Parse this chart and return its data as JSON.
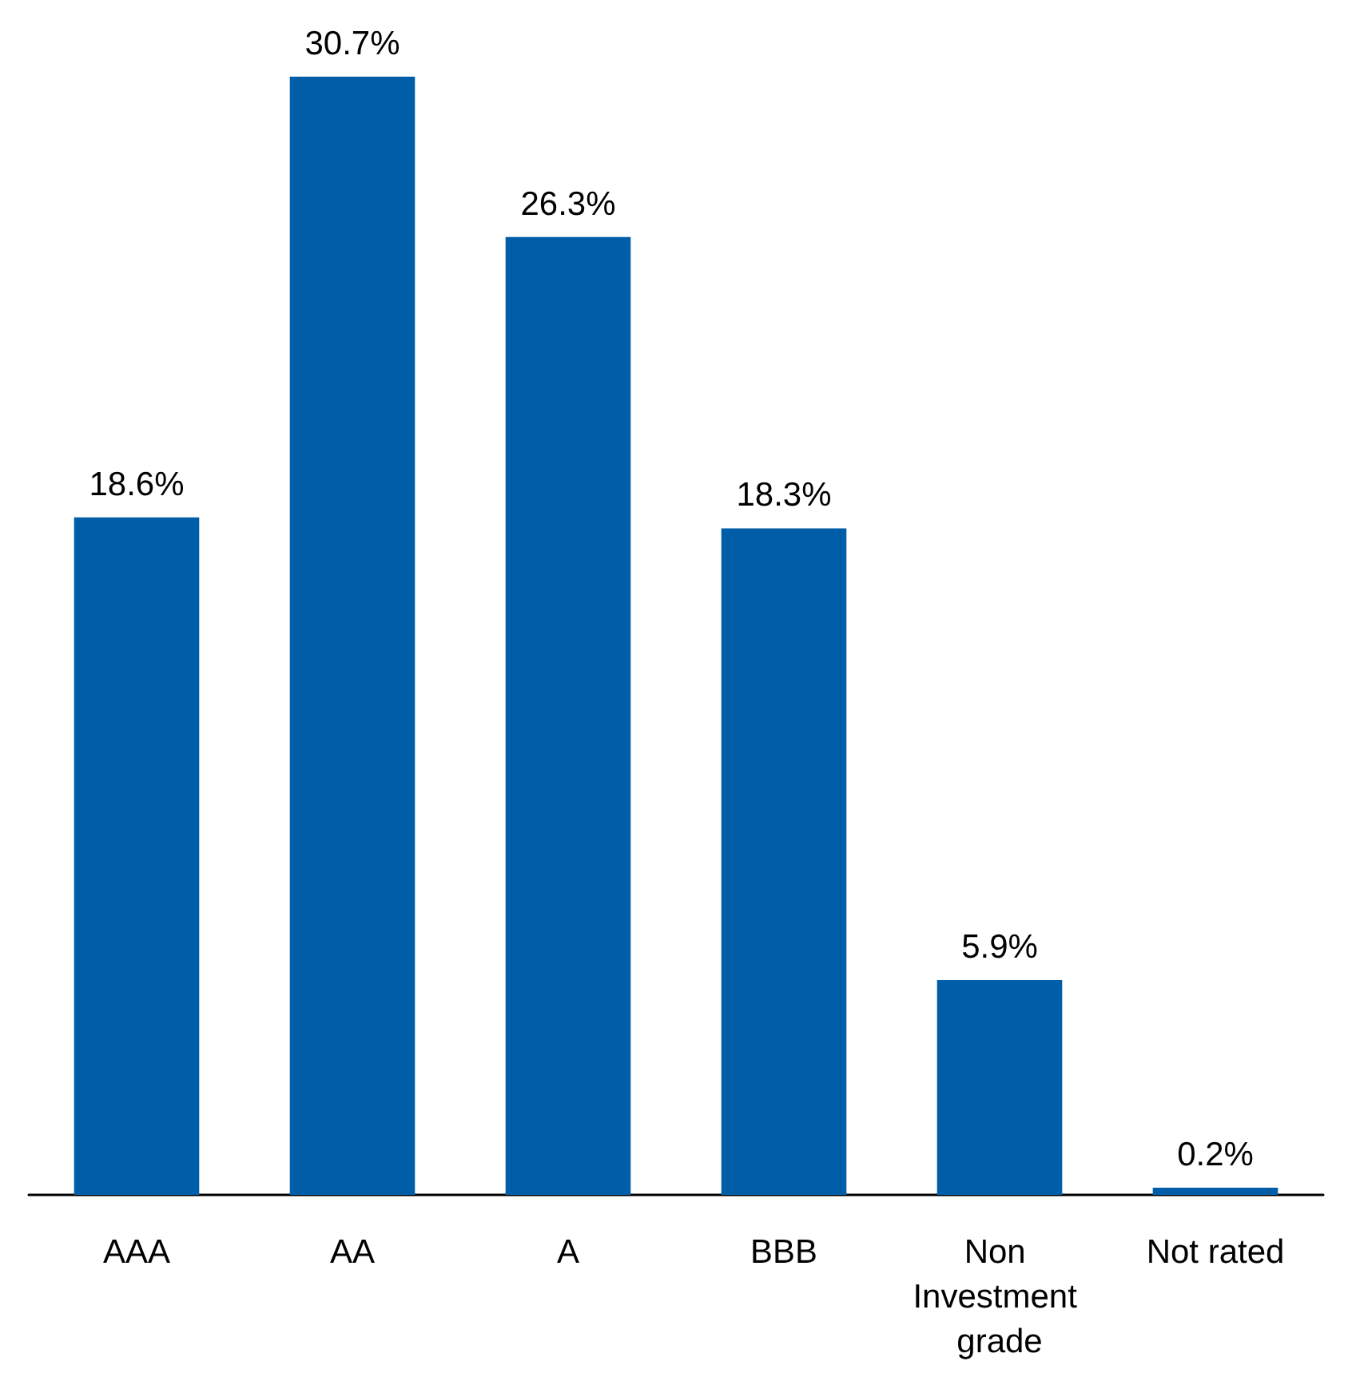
{
  "chart_data": {
    "type": "bar",
    "categories": [
      "AAA",
      "AA",
      "A",
      "BBB",
      "Non Investment grade",
      "Not rated"
    ],
    "values": [
      18.6,
      30.7,
      26.3,
      18.3,
      5.9,
      0.2
    ],
    "value_labels": [
      "18.6%",
      "30.7%",
      "26.3%",
      "18.3%",
      "5.9%",
      "0.2%"
    ],
    "color": "#005ea8"
  }
}
